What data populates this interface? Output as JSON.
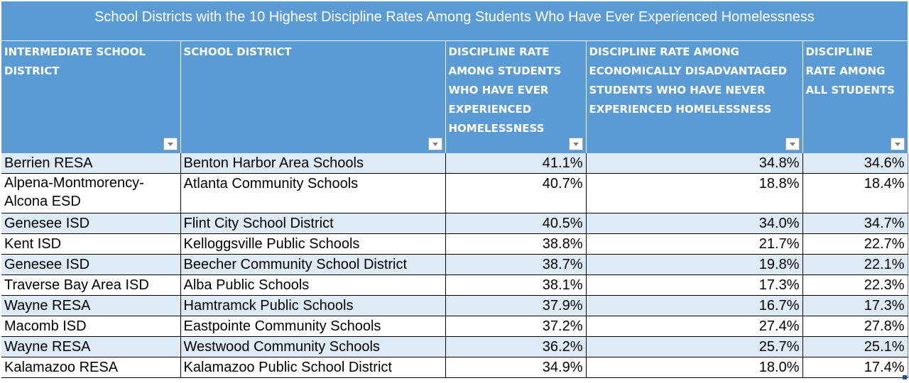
{
  "title": "School Districts with the 10 Highest Discipline Rates Among Students Who Have Ever Experienced Homelessness",
  "columns": [
    "INTERMEDIATE SCHOOL DISTRICT",
    "SCHOOL DISTRICT",
    "DISCIPLINE RATE AMONG STUDENTS WHO HAVE EVER EXPERIENCED HOMELESSNESS",
    "DISCIPLINE RATE AMONG ECONOMICALLY DISADVANTAGED STUDENTS WHO HAVE NEVER EXPERIENCED HOMELESSNESS",
    "DISCIPLINE RATE AMONG ALL STUDENTS"
  ],
  "rows": [
    [
      "Berrien RESA",
      "Benton Harbor Area Schools",
      "41.1%",
      "34.8%",
      "34.6%"
    ],
    [
      "Alpena-Montmorency-Alcona ESD",
      "Atlanta Community Schools",
      "40.7%",
      "18.8%",
      "18.4%"
    ],
    [
      "Genesee ISD",
      "Flint City School District",
      "40.5%",
      "34.0%",
      "34.7%"
    ],
    [
      "Kent ISD",
      "Kelloggsville Public Schools",
      "38.8%",
      "21.7%",
      "22.7%"
    ],
    [
      "Genesee ISD",
      "Beecher Community School District",
      "38.7%",
      "19.8%",
      "22.1%"
    ],
    [
      "Traverse Bay Area ISD",
      "Alba Public Schools",
      "38.1%",
      "17.3%",
      "22.3%"
    ],
    [
      "Wayne RESA",
      "Hamtramck Public Schools",
      "37.9%",
      "16.7%",
      "17.3%"
    ],
    [
      "Macomb ISD",
      "Eastpointe Community Schools",
      "37.2%",
      "27.4%",
      "27.8%"
    ],
    [
      "Wayne RESA",
      "Westwood Community Schools",
      "36.2%",
      "25.7%",
      "25.1%"
    ],
    [
      "Kalamazoo RESA",
      "Kalamazoo Public School District",
      "34.9%",
      "18.0%",
      "17.4%"
    ]
  ],
  "colors": {
    "header_bg": "#5b9bd5",
    "band_bg": "#ddebf7",
    "header_text": "#ffffff"
  },
  "icons": {
    "filter": "dropdown-filter-icon"
  }
}
